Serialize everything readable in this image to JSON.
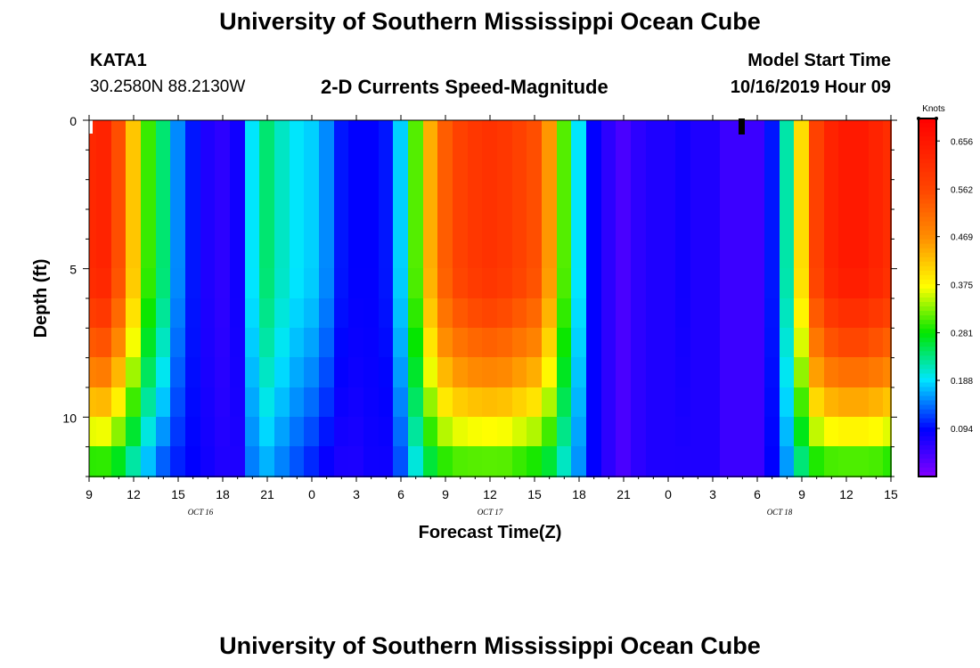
{
  "header": {
    "title": "University of Southern Mississippi Ocean Cube",
    "station": "KATA1",
    "coords": "30.2580N 88.2130W",
    "subtitle": "2-D Currents Speed-Magnitude",
    "model_label": "Model Start Time",
    "model_time": "10/16/2019 Hour 09"
  },
  "footer": {
    "title": "University of Southern Mississippi Ocean Cube"
  },
  "chart_data": {
    "type": "heatmap",
    "title": "2-D Currents Speed-Magnitude",
    "xlabel": "Forecast Time(Z)",
    "ylabel": "Depth (ft)",
    "x_range_hours": [
      0,
      54
    ],
    "x_start": "10/16/2019 Hour 09",
    "x_ticks": [
      "9",
      "12",
      "15",
      "18",
      "21",
      "0",
      "3",
      "6",
      "9",
      "12",
      "15",
      "18",
      "21",
      "0",
      "3",
      "6",
      "9",
      "12",
      "15"
    ],
    "date_labels": [
      {
        "label": "OCT 16",
        "hour": 7.5
      },
      {
        "label": "OCT 17",
        "hour": 27
      },
      {
        "label": "OCT 18",
        "hour": 46.5
      }
    ],
    "y_range": [
      0,
      12
    ],
    "y_ticks": [
      0,
      5,
      10
    ],
    "colorbar": {
      "unit": "Knots",
      "range": [
        0,
        0.7
      ],
      "ticks": [
        "0.656",
        "0.562",
        "0.469",
        "0.375",
        "0.281",
        "0.188",
        "0.094"
      ],
      "tick_values": [
        0.656,
        0.562,
        0.469,
        0.375,
        0.281,
        0.188,
        0.094
      ]
    },
    "depth_levels_ft": [
      0.5,
      1.5,
      2.5,
      3.5,
      4.5,
      5.5,
      6.5,
      7.5,
      8.5,
      9.5,
      10.5,
      11.5
    ],
    "surface_speed_by_hour": [
      0.62,
      0.63,
      0.55,
      0.42,
      0.3,
      0.24,
      0.15,
      0.1,
      0.07,
      0.06,
      0.08,
      0.19,
      0.24,
      0.21,
      0.19,
      0.18,
      0.15,
      0.1,
      0.09,
      0.09,
      0.1,
      0.18,
      0.31,
      0.44,
      0.53,
      0.57,
      0.59,
      0.6,
      0.59,
      0.57,
      0.55,
      0.46,
      0.31,
      0.19,
      0.09,
      0.06,
      0.04,
      0.06,
      0.07,
      0.07,
      0.08,
      0.07,
      0.07,
      0.05,
      0.05,
      0.05,
      0.1,
      0.22,
      0.4,
      0.57,
      0.63,
      0.65,
      0.65,
      0.63,
      0.61
    ],
    "bottom_speed_by_hour": [
      0.26,
      0.26,
      0.24,
      0.2,
      0.16,
      0.12,
      0.1,
      0.09,
      0.08,
      0.07,
      0.07,
      0.14,
      0.16,
      0.14,
      0.12,
      0.1,
      0.08,
      0.07,
      0.07,
      0.08,
      0.08,
      0.12,
      0.19,
      0.24,
      0.27,
      0.28,
      0.28,
      0.28,
      0.28,
      0.27,
      0.26,
      0.24,
      0.2,
      0.15,
      0.09,
      0.06,
      0.04,
      0.06,
      0.07,
      0.07,
      0.07,
      0.07,
      0.07,
      0.05,
      0.05,
      0.05,
      0.09,
      0.15,
      0.22,
      0.26,
      0.27,
      0.27,
      0.27,
      0.27,
      0.26
    ]
  }
}
